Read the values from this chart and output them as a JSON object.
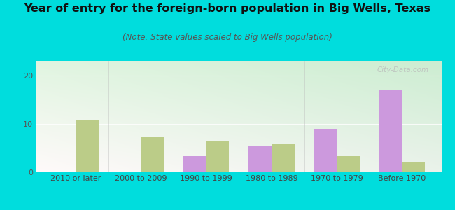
{
  "title": "Year of entry for the foreign-born population in Big Wells, Texas",
  "subtitle": "(Note: State values scaled to Big Wells population)",
  "categories": [
    "2010 or later",
    "2000 to 2009",
    "1990 to 1999",
    "1980 to 1989",
    "1970 to 1979",
    "Before 1970"
  ],
  "big_wells": [
    0,
    0,
    3.3,
    5.5,
    9.0,
    17.0
  ],
  "texas": [
    10.7,
    7.2,
    6.3,
    5.8,
    3.3,
    2.0
  ],
  "big_wells_color": "#cc99dd",
  "texas_color": "#bbcc88",
  "ylim": [
    0,
    23
  ],
  "yticks": [
    0,
    10,
    20
  ],
  "bg_color_topleft": "#cceecc",
  "bg_color_topright": "#eef8f8",
  "bg_color_bottomleft": "#aaddcc",
  "outer_bg": "#00dddd",
  "title_fontsize": 11.5,
  "subtitle_fontsize": 8.5,
  "tick_fontsize": 8,
  "legend_fontsize": 9,
  "bar_width": 0.35
}
